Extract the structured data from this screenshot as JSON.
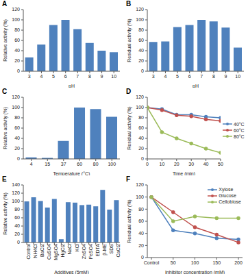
{
  "chart_data": [
    {
      "title": "A",
      "type": "bar",
      "categories": [
        "3",
        "4",
        "5",
        "6",
        "7",
        "8",
        "9",
        "10"
      ],
      "values": [
        27,
        52,
        90,
        100,
        82,
        55,
        40,
        37
      ],
      "color": "#4f81bd",
      "xlabel": "pH",
      "ylabel": "Relative activity (%)",
      "ylim": [
        0,
        120
      ],
      "yticks": [
        0,
        20,
        40,
        60,
        80,
        100,
        120
      ]
    },
    {
      "title": "B",
      "type": "bar",
      "categories": [
        "3",
        "4",
        "5",
        "6",
        "7",
        "8",
        "9",
        "10"
      ],
      "values": [
        57,
        58,
        86,
        90,
        100,
        97,
        85,
        46
      ],
      "color": "#4f81bd",
      "xlabel": "pH",
      "ylabel": "Residual activity (%)",
      "ylim": [
        0,
        120
      ],
      "yticks": [
        0,
        20,
        40,
        60,
        80,
        100,
        120
      ]
    },
    {
      "title": "C",
      "type": "bar",
      "categories": [
        "4",
        "15",
        "37",
        "60",
        "80",
        "100"
      ],
      "values": [
        3,
        2,
        35,
        100,
        97,
        82
      ],
      "color": "#4f81bd",
      "xlabel": "Temperature (°C)",
      "ylabel": "Relative activity (%)",
      "ylim": [
        0,
        120
      ],
      "yticks": [
        0,
        20,
        40,
        60,
        80,
        100,
        120
      ]
    },
    {
      "title": "D",
      "type": "line",
      "x": [
        0,
        10,
        20,
        30,
        40,
        50
      ],
      "series": [
        {
          "name": "40°C",
          "color": "#4f81bd",
          "values": [
            100,
            97,
            86,
            86,
            82,
            80
          ]
        },
        {
          "name": "60°C",
          "color": "#c0504d",
          "values": [
            100,
            95,
            85,
            83,
            77,
            74
          ]
        },
        {
          "name": "80°C",
          "color": "#9bbb59",
          "values": [
            100,
            52,
            40,
            30,
            20,
            12
          ]
        }
      ],
      "marker": "circle",
      "legend": "right",
      "xlabel": "Time (min)",
      "ylabel": "Residual activity (%)",
      "xlim": [
        0,
        50
      ],
      "xticks": [
        0,
        10,
        20,
        30,
        40,
        50
      ],
      "ylim": [
        0,
        120
      ],
      "yticks": [
        0,
        20,
        40,
        60,
        80,
        100,
        120
      ]
    },
    {
      "title": "E",
      "type": "bar",
      "categories": [
        "Control",
        "NH4Cl",
        "BaCl2",
        "CuSO4",
        "MgSO4",
        "HgCl2",
        "NaCl",
        "KCl",
        "ZnSO4",
        "FeSO4",
        "EDTA",
        "β-ME",
        "SDS",
        "CaCl2"
      ],
      "values": [
        100,
        110,
        101,
        85,
        106,
        8,
        98,
        97,
        91,
        92,
        88,
        128,
        80,
        103
      ],
      "color": "#4f81bd",
      "xlabel": "Additives (5mM)",
      "ylabel": "Relative activity (%)",
      "ylim": [
        0,
        140
      ],
      "yticks": [
        0,
        20,
        40,
        60,
        80,
        100,
        120,
        140
      ]
    },
    {
      "title": "F",
      "type": "line",
      "categories": [
        "Control",
        "50",
        "100",
        "150",
        "200"
      ],
      "series": [
        {
          "name": "Xylose",
          "color": "#4f81bd",
          "values": [
            100,
            45,
            40,
            32,
            30
          ]
        },
        {
          "name": "Glucose",
          "color": "#c0504d",
          "values": [
            100,
            75,
            50,
            38,
            25
          ]
        },
        {
          "name": "Cellobiose",
          "color": "#9bbb59",
          "values": [
            100,
            60,
            68,
            65,
            65
          ]
        }
      ],
      "marker": "circle",
      "legend": "upper right",
      "xlabel": "Inhibitor concentration (mM)",
      "ylabel": "Residual activity (%)",
      "ylim": [
        0,
        120
      ],
      "yticks": [
        0,
        20,
        40,
        60,
        80,
        100,
        120
      ]
    }
  ]
}
